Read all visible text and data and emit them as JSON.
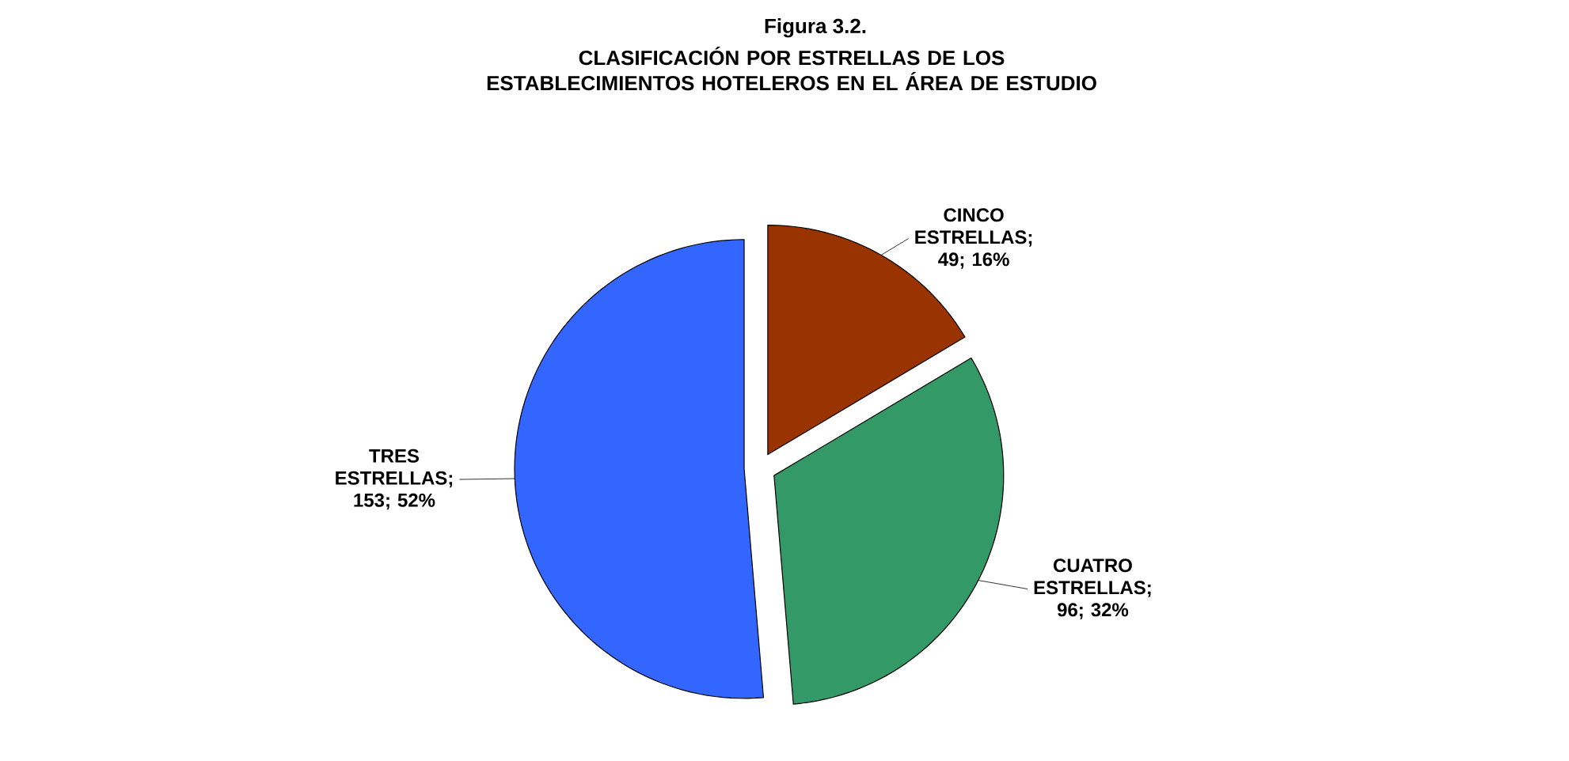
{
  "chart_data": {
    "type": "pie",
    "title": "Figura 3.2.",
    "subtitle": "CLASIFICACIÓN POR ESTRELLAS DE LOS ESTABLECIMIENTOS HOTELEROS EN EL ÁREA DE ESTUDIO",
    "categories": [
      "CINCO ESTRELLAS",
      "CUATRO ESTRELLAS",
      "TRES ESTRELLAS"
    ],
    "values": [
      49,
      96,
      153
    ],
    "value_labels": [
      "; 49; 16%",
      "; 96; 32%",
      "; 153; 52%"
    ],
    "colors": [
      "#993300",
      "#339966",
      "#3366ff"
    ]
  }
}
